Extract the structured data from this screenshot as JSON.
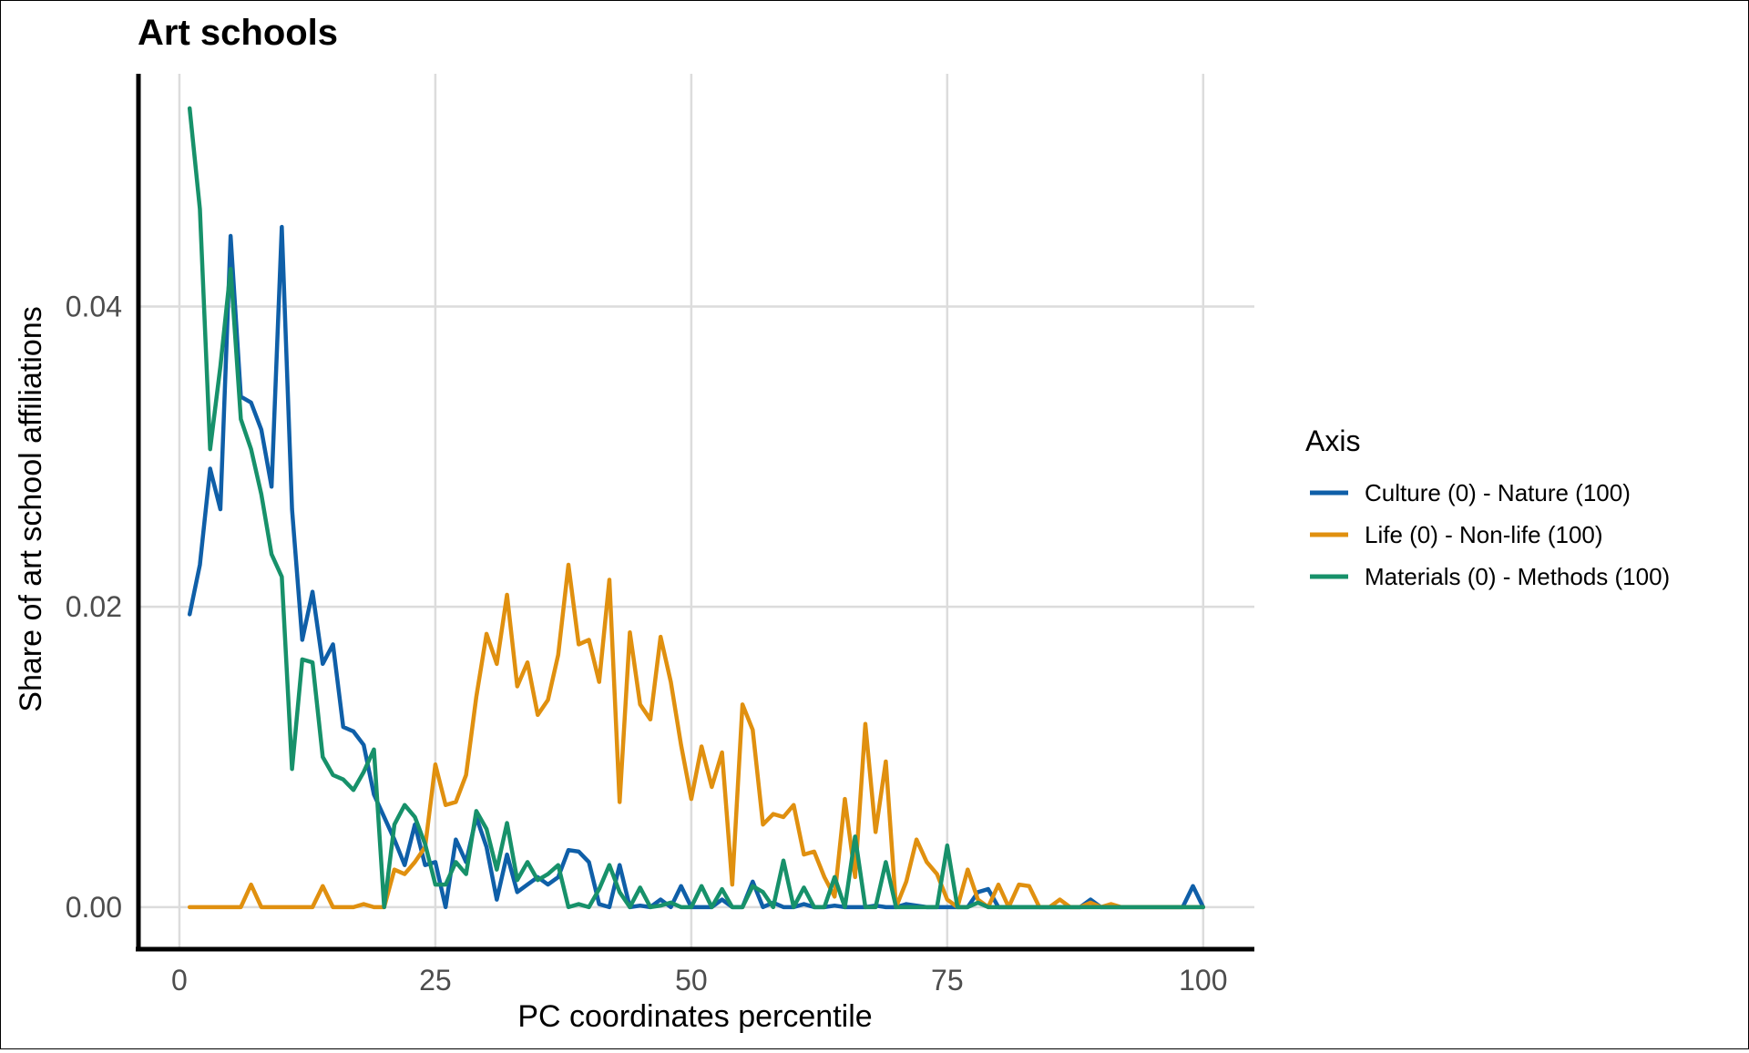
{
  "chart_data": {
    "type": "line",
    "title": "Art schools",
    "xlabel": "PC coordinates percentile",
    "ylabel": "Share of art school affiliations",
    "xlim": [
      -4,
      105
    ],
    "ylim": [
      -0.0028,
      0.0555
    ],
    "xticks": [
      0,
      25,
      50,
      75,
      100
    ],
    "xtick_labels": [
      "0",
      "25",
      "50",
      "75",
      "100"
    ],
    "yticks": [
      0,
      0.02,
      0.04
    ],
    "ytick_labels": [
      "0.00",
      "0.02",
      "0.04"
    ],
    "grid": true,
    "legend_title": "Axis",
    "legend_position": "right",
    "x": [
      1,
      2,
      3,
      4,
      5,
      6,
      7,
      8,
      9,
      10,
      11,
      12,
      13,
      14,
      15,
      16,
      17,
      18,
      19,
      20,
      21,
      22,
      23,
      24,
      25,
      26,
      27,
      28,
      29,
      30,
      31,
      32,
      33,
      34,
      35,
      36,
      37,
      38,
      39,
      40,
      41,
      42,
      43,
      44,
      45,
      46,
      47,
      48,
      49,
      50,
      51,
      52,
      53,
      54,
      55,
      56,
      57,
      58,
      59,
      60,
      61,
      62,
      63,
      64,
      65,
      66,
      67,
      68,
      69,
      70,
      71,
      72,
      73,
      74,
      75,
      76,
      77,
      78,
      79,
      80,
      81,
      82,
      83,
      84,
      85,
      86,
      87,
      88,
      89,
      90,
      91,
      92,
      93,
      94,
      95,
      96,
      97,
      98,
      99,
      100
    ],
    "series": [
      {
        "name": "Culture (0) - Nature (100)",
        "color": "#0f5fa8",
        "values": [
          0.0195,
          0.0228,
          0.0292,
          0.0265,
          0.0447,
          0.034,
          0.0336,
          0.0318,
          0.028,
          0.0453,
          0.0265,
          0.0178,
          0.021,
          0.0162,
          0.0175,
          0.012,
          0.0117,
          0.0108,
          0.0075,
          0.006,
          0.0045,
          0.0028,
          0.0055,
          0.0028,
          0.003,
          0.0,
          0.0045,
          0.003,
          0.006,
          0.004,
          0.0005,
          0.0035,
          0.001,
          0.0015,
          0.002,
          0.0015,
          0.002,
          0.0038,
          0.0037,
          0.003,
          0.0002,
          0.0,
          0.0028,
          0.0,
          0.0001,
          0.0,
          0.0005,
          0.0,
          0.0014,
          0.0,
          0.0,
          0.0,
          0.0005,
          0.0,
          0.0,
          0.0017,
          0.0,
          0.0003,
          0.0,
          0.0,
          0.0002,
          0.0,
          0.0,
          0.0001,
          0.0,
          0.0,
          0.0,
          0.0001,
          0.0,
          0.0,
          0.0002,
          0.0001,
          0.0,
          0.0,
          0.0,
          0.0,
          0.0,
          0.001,
          0.0012,
          0.0,
          0.0,
          0.0,
          0.0,
          0.0,
          0.0,
          0.0,
          0.0,
          0.0,
          0.0005,
          0.0,
          0.0,
          0.0,
          0.0,
          0.0,
          0.0,
          0.0,
          0.0,
          0.0,
          0.0014,
          0.0
        ]
      },
      {
        "name": "Life (0) - Non-life (100)",
        "color": "#e0900f",
        "values": [
          0.0,
          0.0,
          0.0,
          0.0,
          0.0,
          0.0,
          0.0015,
          0.0,
          0.0,
          0.0,
          0.0,
          0.0,
          0.0,
          0.0014,
          0.0,
          0.0,
          0.0,
          0.0002,
          0.0,
          0.0,
          0.0025,
          0.0022,
          0.003,
          0.004,
          0.0095,
          0.0068,
          0.007,
          0.0088,
          0.014,
          0.0182,
          0.0162,
          0.0208,
          0.0147,
          0.0163,
          0.0128,
          0.0138,
          0.0168,
          0.0228,
          0.0175,
          0.0178,
          0.015,
          0.0218,
          0.007,
          0.0183,
          0.0135,
          0.0125,
          0.018,
          0.015,
          0.0108,
          0.0072,
          0.0107,
          0.008,
          0.0103,
          0.0015,
          0.0135,
          0.0118,
          0.0055,
          0.0062,
          0.006,
          0.0068,
          0.0035,
          0.0037,
          0.002,
          0.0007,
          0.0072,
          0.002,
          0.0122,
          0.005,
          0.0097,
          0.0,
          0.0017,
          0.0045,
          0.003,
          0.0022,
          0.0005,
          0.0,
          0.0025,
          0.0005,
          0.0,
          0.0015,
          0.0,
          0.0015,
          0.0014,
          0.0,
          0.0,
          0.0005,
          0.0,
          0.0,
          0.0003,
          0.0,
          0.0002,
          0.0,
          0.0,
          0.0,
          0.0,
          0.0,
          0.0,
          0.0,
          0.0,
          0.0
        ]
      },
      {
        "name": "Materials (0) - Methods (100)",
        "color": "#17916a",
        "values": [
          0.0532,
          0.0465,
          0.0305,
          0.036,
          0.0425,
          0.0325,
          0.0305,
          0.0275,
          0.0235,
          0.022,
          0.0092,
          0.0165,
          0.0163,
          0.01,
          0.0088,
          0.0085,
          0.0078,
          0.009,
          0.0105,
          0.0,
          0.0055,
          0.0068,
          0.006,
          0.0042,
          0.0015,
          0.0015,
          0.003,
          0.0022,
          0.0064,
          0.0052,
          0.0025,
          0.0056,
          0.0018,
          0.003,
          0.0018,
          0.0022,
          0.0028,
          0.0,
          0.0002,
          0.0,
          0.0012,
          0.0028,
          0.001,
          0.0,
          0.0013,
          0.0,
          0.0001,
          0.0003,
          0.0,
          0.0,
          0.0014,
          0.0,
          0.0012,
          0.0,
          0.0,
          0.0014,
          0.001,
          0.0,
          0.0031,
          0.0,
          0.0013,
          0.0,
          0.0,
          0.002,
          0.0,
          0.0047,
          0.0,
          0.0,
          0.003,
          0.0,
          0.0,
          0.0,
          0.0,
          0.0,
          0.0041,
          0.0,
          0.0,
          0.0003,
          0.0,
          0.0,
          0.0,
          0.0,
          0.0,
          0.0,
          0.0,
          0.0,
          0.0,
          0.0,
          0.0,
          0.0,
          0.0,
          0.0,
          0.0,
          0.0,
          0.0,
          0.0,
          0.0,
          0.0,
          0.0,
          0.0
        ]
      }
    ]
  }
}
